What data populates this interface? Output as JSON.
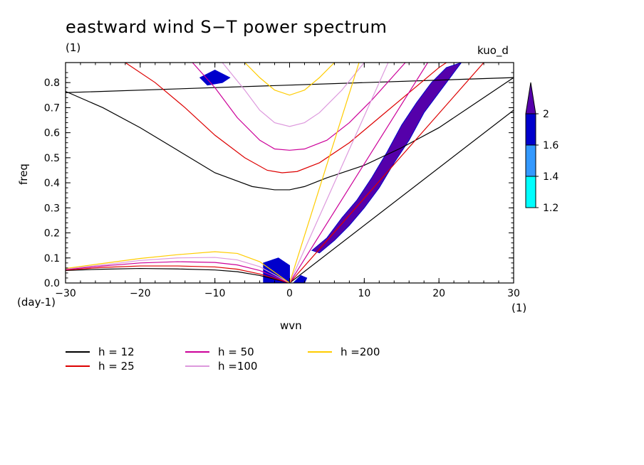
{
  "figure": {
    "title": "eastward wind S−T power spectrum",
    "subtitle_left": "(1)",
    "subtitle_right": "kuo_d"
  },
  "chart_data": {
    "type": "heatmap",
    "xlabel": "wvn",
    "ylabel": "freq",
    "x_unit": "(1)",
    "y_unit": "(day-1)",
    "xlim": [
      -30,
      30
    ],
    "ylim": [
      0,
      0.88
    ],
    "x_ticks": [
      -30,
      -20,
      -10,
      0,
      10,
      20,
      30
    ],
    "x_tick_labels": [
      "−30",
      "−20",
      "−10",
      "0",
      "10",
      "20",
      "30"
    ],
    "y_ticks": [
      0,
      0.1,
      0.2,
      0.3,
      0.4,
      0.5,
      0.6,
      0.7,
      0.8
    ],
    "y_tick_labels": [
      "0.0",
      "0.1",
      "0.2",
      "0.3",
      "0.4",
      "0.5",
      "0.6",
      "0.7",
      "0.8"
    ],
    "colorbar": {
      "levels": [
        1.2,
        1.4,
        1.6,
        2
      ],
      "labels": [
        "1.2",
        "1.4",
        "1.6",
        "2"
      ],
      "colors": [
        "#00ffff",
        "#3399ff",
        "#0000cc",
        "#5500aa"
      ]
    },
    "power_regions": [
      {
        "name": "kelvin-band",
        "level": 2,
        "points": [
          [
            3,
            0.13
          ],
          [
            5,
            0.18
          ],
          [
            7,
            0.26
          ],
          [
            9,
            0.33
          ],
          [
            11,
            0.42
          ],
          [
            13,
            0.52
          ],
          [
            15,
            0.63
          ],
          [
            17,
            0.72
          ],
          [
            19,
            0.8
          ],
          [
            21,
            0.86
          ],
          [
            23,
            0.88
          ],
          [
            21,
            0.8
          ],
          [
            18,
            0.68
          ],
          [
            16,
            0.57
          ],
          [
            14,
            0.48
          ],
          [
            12,
            0.38
          ],
          [
            10,
            0.3
          ],
          [
            8,
            0.23
          ],
          [
            6,
            0.17
          ],
          [
            4,
            0.12
          ]
        ]
      },
      {
        "name": "low-freq-west",
        "level": 1.6,
        "points": [
          [
            -3.5,
            0.0
          ],
          [
            -3.5,
            0.08
          ],
          [
            -1.5,
            0.1
          ],
          [
            0,
            0.07
          ],
          [
            0,
            0.0
          ]
        ]
      },
      {
        "name": "low-freq-east",
        "level": 1.6,
        "points": [
          [
            0.5,
            0.0
          ],
          [
            1.5,
            0.03
          ],
          [
            2.3,
            0.02
          ],
          [
            2,
            0.0
          ]
        ]
      },
      {
        "name": "top-left-patch",
        "level": 1.6,
        "points": [
          [
            -12,
            0.82
          ],
          [
            -10,
            0.85
          ],
          [
            -8,
            0.82
          ],
          [
            -9,
            0.8
          ],
          [
            -11,
            0.79
          ]
        ]
      }
    ],
    "dispersion_curves": [
      {
        "name": "h = 12",
        "color": "#000000",
        "lines": [
          {
            "type": "kelvin_shift",
            "x0": -30,
            "y0": 0.76,
            "x1": 30,
            "y1": 0.82
          },
          {
            "points": [
              [
                -30,
                0.765
              ],
              [
                -25,
                0.7
              ],
              [
                -20,
                0.62
              ],
              [
                -15,
                0.53
              ],
              [
                -10,
                0.44
              ],
              [
                -5,
                0.385
              ],
              [
                -2,
                0.372
              ],
              [
                0,
                0.372
              ],
              [
                2,
                0.385
              ],
              [
                5,
                0.42
              ],
              [
                10,
                0.47
              ],
              [
                15,
                0.54
              ],
              [
                20,
                0.62
              ],
              [
                25,
                0.72
              ],
              [
                30,
                0.82
              ]
            ]
          },
          {
            "points": [
              [
                0,
                0
              ],
              [
                30,
                0.69
              ]
            ]
          },
          {
            "points": [
              [
                -30,
                0.05
              ],
              [
                -25,
                0.055
              ],
              [
                -20,
                0.058
              ],
              [
                -15,
                0.056
              ],
              [
                -10,
                0.052
              ],
              [
                -7,
                0.045
              ],
              [
                -4,
                0.03
              ],
              [
                0,
                0
              ]
            ]
          }
        ]
      },
      {
        "name": "h = 25",
        "color": "#dd0000",
        "lines": [
          {
            "points": [
              [
                -22,
                0.88
              ],
              [
                -18,
                0.8
              ],
              [
                -14,
                0.7
              ],
              [
                -10,
                0.59
              ],
              [
                -6,
                0.5
              ],
              [
                -3,
                0.45
              ],
              [
                -1,
                0.44
              ],
              [
                1,
                0.445
              ],
              [
                4,
                0.48
              ],
              [
                8,
                0.56
              ],
              [
                12,
                0.66
              ],
              [
                16,
                0.76
              ],
              [
                20,
                0.86
              ],
              [
                21,
                0.88
              ]
            ]
          },
          {
            "points": [
              [
                0,
                0
              ],
              [
                26,
                0.88
              ]
            ]
          },
          {
            "points": [
              [
                -30,
                0.052
              ],
              [
                -25,
                0.062
              ],
              [
                -20,
                0.068
              ],
              [
                -15,
                0.068
              ],
              [
                -10,
                0.064
              ],
              [
                -7,
                0.055
              ],
              [
                -4,
                0.036
              ],
              [
                0,
                0
              ]
            ]
          }
        ]
      },
      {
        "name": "h = 50",
        "color": "#cc0099",
        "lines": [
          {
            "points": [
              [
                -13,
                0.88
              ],
              [
                -10,
                0.78
              ],
              [
                -7,
                0.66
              ],
              [
                -4,
                0.57
              ],
              [
                -2,
                0.535
              ],
              [
                0,
                0.53
              ],
              [
                2,
                0.535
              ],
              [
                5,
                0.57
              ],
              [
                8,
                0.64
              ],
              [
                11,
                0.73
              ],
              [
                14,
                0.83
              ],
              [
                15.5,
                0.88
              ]
            ]
          },
          {
            "points": [
              [
                0,
                0
              ],
              [
                18.5,
                0.88
              ]
            ]
          },
          {
            "points": [
              [
                -30,
                0.054
              ],
              [
                -25,
                0.068
              ],
              [
                -20,
                0.08
              ],
              [
                -15,
                0.085
              ],
              [
                -10,
                0.082
              ],
              [
                -7,
                0.072
              ],
              [
                -4,
                0.05
              ],
              [
                0,
                0
              ]
            ]
          }
        ]
      },
      {
        "name": "h =100",
        "color": "#dd99dd",
        "lines": [
          {
            "points": [
              [
                -9,
                0.88
              ],
              [
                -6,
                0.77
              ],
              [
                -4,
                0.69
              ],
              [
                -2,
                0.64
              ],
              [
                0,
                0.625
              ],
              [
                2,
                0.64
              ],
              [
                4,
                0.68
              ],
              [
                7,
                0.77
              ],
              [
                10,
                0.88
              ]
            ]
          },
          {
            "points": [
              [
                0,
                0
              ],
              [
                13.2,
                0.88
              ]
            ]
          },
          {
            "points": [
              [
                -30,
                0.056
              ],
              [
                -25,
                0.072
              ],
              [
                -20,
                0.09
              ],
              [
                -15,
                0.1
              ],
              [
                -10,
                0.102
              ],
              [
                -7,
                0.092
              ],
              [
                -4,
                0.065
              ],
              [
                0,
                0
              ]
            ]
          }
        ]
      },
      {
        "name": "h =200",
        "color": "#ffcc00",
        "lines": [
          {
            "points": [
              [
                -6,
                0.88
              ],
              [
                -4,
                0.82
              ],
              [
                -2,
                0.77
              ],
              [
                0,
                0.75
              ],
              [
                2,
                0.77
              ],
              [
                4,
                0.82
              ],
              [
                6,
                0.88
              ]
            ]
          },
          {
            "points": [
              [
                0,
                0
              ],
              [
                9.3,
                0.88
              ]
            ]
          },
          {
            "points": [
              [
                -30,
                0.058
              ],
              [
                -25,
                0.078
              ],
              [
                -20,
                0.098
              ],
              [
                -15,
                0.113
              ],
              [
                -10,
                0.125
              ],
              [
                -7,
                0.118
              ],
              [
                -4,
                0.085
              ],
              [
                0,
                0
              ]
            ]
          }
        ]
      }
    ]
  },
  "legend": [
    {
      "label": "h = 12",
      "color": "#000000"
    },
    {
      "label": "h = 25",
      "color": "#dd0000"
    },
    {
      "label": "h = 50",
      "color": "#cc0099"
    },
    {
      "label": "h =100",
      "color": "#dd99dd"
    },
    {
      "label": "h =200",
      "color": "#ffcc00"
    }
  ]
}
